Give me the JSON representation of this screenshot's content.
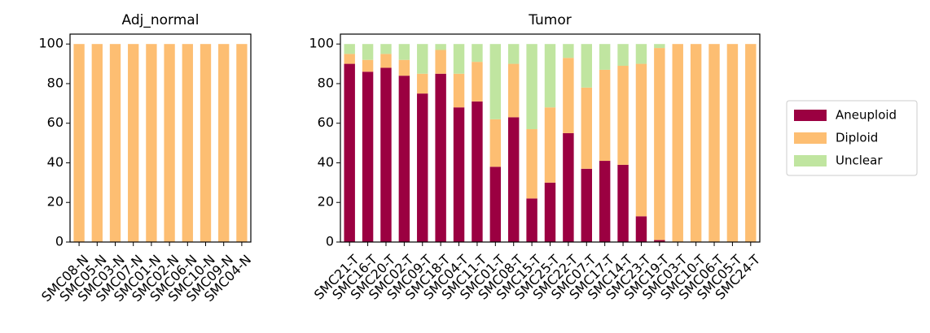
{
  "colors": {
    "Aneuploid": "#9b0041",
    "Diploid": "#fdbe72",
    "Unclear": "#c0e5a0"
  },
  "legend": {
    "placement": "center-right",
    "entries": [
      "Aneuploid",
      "Diploid",
      "Unclear"
    ]
  },
  "chart_data": [
    {
      "type": "bar",
      "stacked": true,
      "title": "Adj_normal",
      "xlabel": "",
      "ylabel": "",
      "ylim": [
        0,
        105
      ],
      "yticks": [
        0,
        20,
        40,
        60,
        80,
        100
      ],
      "grid": false,
      "categories": [
        "SMC08-N",
        "SMC05-N",
        "SMC03-N",
        "SMC07-N",
        "SMC01-N",
        "SMC02-N",
        "SMC06-N",
        "SMC10-N",
        "SMC09-N",
        "SMC04-N"
      ],
      "series": [
        {
          "name": "Aneuploid",
          "values": [
            0,
            0,
            0,
            0,
            0,
            0,
            0,
            0,
            0,
            0
          ]
        },
        {
          "name": "Diploid",
          "values": [
            100,
            100,
            100,
            100,
            100,
            100,
            100,
            100,
            100,
            100
          ]
        },
        {
          "name": "Unclear",
          "values": [
            0,
            0,
            0,
            0,
            0,
            0,
            0,
            0,
            0,
            0
          ]
        }
      ]
    },
    {
      "type": "bar",
      "stacked": true,
      "title": "Tumor",
      "xlabel": "",
      "ylabel": "",
      "ylim": [
        0,
        105
      ],
      "yticks": [
        0,
        20,
        40,
        60,
        80,
        100
      ],
      "grid": false,
      "categories": [
        "SMC21-T",
        "SMC16-T",
        "SMC20-T",
        "SMC02-T",
        "SMC09-T",
        "SMC18-T",
        "SMC04-T",
        "SMC11-T",
        "SMC01-T",
        "SMC08-T",
        "SMC15-T",
        "SMC25-T",
        "SMC22-T",
        "SMC07-T",
        "SMC17-T",
        "SMC14-T",
        "SMC23-T",
        "SMC19-T",
        "SMC03-T",
        "SMC10-T",
        "SMC06-T",
        "SMC05-T",
        "SMC24-T"
      ],
      "series": [
        {
          "name": "Aneuploid",
          "values": [
            90,
            86,
            88,
            84,
            75,
            85,
            68,
            71,
            38,
            63,
            22,
            30,
            55,
            37,
            41,
            39,
            13,
            1,
            0,
            0,
            0,
            0,
            0
          ]
        },
        {
          "name": "Diploid",
          "values": [
            5,
            6,
            7,
            8,
            10,
            12,
            17,
            20,
            24,
            27,
            35,
            38,
            38,
            41,
            46,
            50,
            77,
            97,
            100,
            100,
            100,
            100,
            100
          ]
        },
        {
          "name": "Unclear",
          "values": [
            5,
            8,
            5,
            8,
            15,
            3,
            15,
            9,
            38,
            10,
            43,
            32,
            7,
            22,
            13,
            11,
            10,
            2,
            0,
            0,
            0,
            0,
            0
          ]
        }
      ]
    }
  ]
}
